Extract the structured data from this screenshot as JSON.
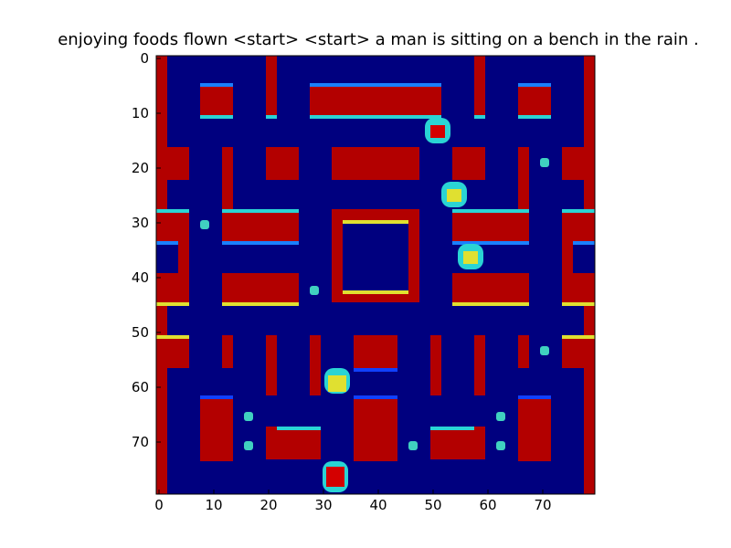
{
  "figure": {
    "title": "enjoying foods flown <start> <start> a man is sitting on a bench in the rain ."
  },
  "axes": {
    "x_ticks": [
      "0",
      "10",
      "20",
      "30",
      "40",
      "50",
      "60",
      "70"
    ],
    "y_ticks": [
      "0",
      "10",
      "20",
      "30",
      "40",
      "50",
      "60",
      "70"
    ]
  },
  "game_view": {
    "grid_size": 80,
    "colormap": "jet",
    "colors": {
      "floor": "#00007f",
      "wall": "#b30000",
      "edge_cyan": "#2ad4d4",
      "edge_yellow": "#e0e030",
      "edge_blue": "#1040ff",
      "pellet": "#40d0c0",
      "sprite_red": "#d40000"
    }
  }
}
